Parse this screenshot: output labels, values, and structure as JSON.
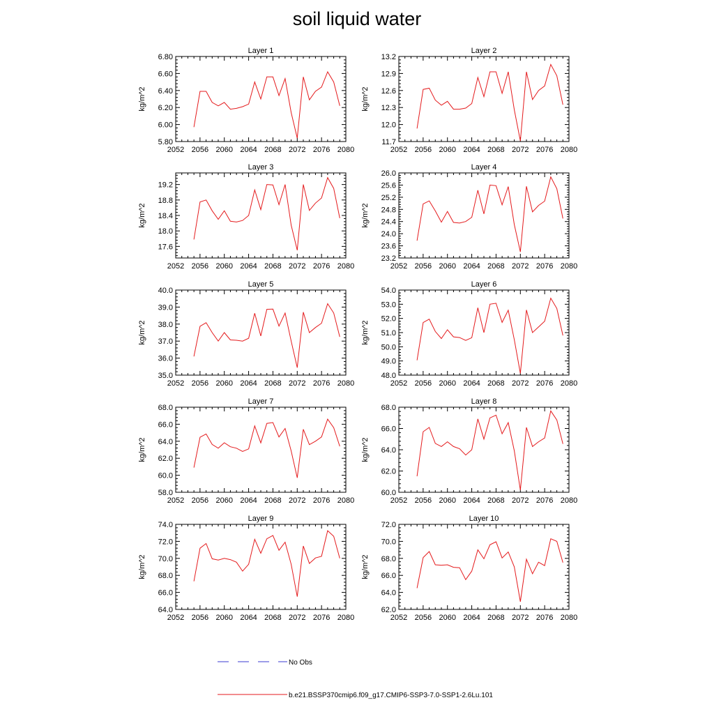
{
  "title": "soil liquid water",
  "legend": {
    "placement": "bottom-center",
    "entries": [
      {
        "label": "No Obs",
        "color": "#3a3ad0",
        "style": "dashed"
      },
      {
        "label": "b.e21.BSSP370cmip6.f09_g17.CMIP6-SSP3-7.0-SSP1-2.6Lu.101",
        "color": "#e41a1c",
        "style": "solid"
      }
    ]
  },
  "colors": {
    "series": "#e41a1c",
    "axis": "#000000"
  },
  "chart_data": [
    {
      "type": "line",
      "title": "Layer 1",
      "ylabel": "kg/m^2",
      "xlim": [
        2052,
        2080
      ],
      "xticks": [
        "2052",
        "2056",
        "2060",
        "2064",
        "2068",
        "2072",
        "2076",
        "2080"
      ],
      "ylim": [
        5.8,
        6.8
      ],
      "yticks": [
        "5.80",
        "6.00",
        "6.20",
        "6.40",
        "6.60",
        "6.80"
      ],
      "x": [
        2055,
        2056,
        2057,
        2058,
        2059,
        2060,
        2061,
        2062,
        2063,
        2064,
        2065,
        2066,
        2067,
        2068,
        2069,
        2070,
        2071,
        2072,
        2073,
        2074,
        2075,
        2076,
        2077,
        2078,
        2079
      ],
      "series": [
        {
          "values": [
            5.97,
            6.39,
            6.39,
            6.26,
            6.22,
            6.26,
            6.18,
            6.19,
            6.21,
            6.24,
            6.5,
            6.3,
            6.56,
            6.56,
            6.34,
            6.54,
            6.14,
            5.84,
            6.56,
            6.29,
            6.39,
            6.44,
            6.62,
            6.5,
            6.22
          ]
        }
      ]
    },
    {
      "type": "line",
      "title": "Layer 2",
      "ylabel": "kg/m^2",
      "xlim": [
        2052,
        2080
      ],
      "xticks": [
        "2052",
        "2056",
        "2060",
        "2064",
        "2068",
        "2072",
        "2076",
        "2080"
      ],
      "ylim": [
        11.7,
        13.2
      ],
      "yticks": [
        "11.7",
        "12.0",
        "12.3",
        "12.6",
        "12.9",
        "13.2"
      ],
      "x": [
        2055,
        2056,
        2057,
        2058,
        2059,
        2060,
        2061,
        2062,
        2063,
        2064,
        2065,
        2066,
        2067,
        2068,
        2069,
        2070,
        2071,
        2072,
        2073,
        2074,
        2075,
        2076,
        2077,
        2078,
        2079
      ],
      "series": [
        {
          "values": [
            11.93,
            12.62,
            12.64,
            12.43,
            12.34,
            12.41,
            12.27,
            12.27,
            12.29,
            12.37,
            12.83,
            12.49,
            12.93,
            12.93,
            12.55,
            12.93,
            12.26,
            11.71,
            12.93,
            12.44,
            12.6,
            12.68,
            13.06,
            12.86,
            12.35
          ]
        }
      ]
    },
    {
      "type": "line",
      "title": "Layer 3",
      "ylabel": "kg/m^2",
      "xlim": [
        2052,
        2080
      ],
      "xticks": [
        "2052",
        "2056",
        "2060",
        "2064",
        "2068",
        "2072",
        "2076",
        "2080"
      ],
      "ylim": [
        17.3,
        19.5
      ],
      "yticks": [
        "17.6",
        "18.0",
        "18.4",
        "18.8",
        "19.2"
      ],
      "x": [
        2055,
        2056,
        2057,
        2058,
        2059,
        2060,
        2061,
        2062,
        2063,
        2064,
        2065,
        2066,
        2067,
        2068,
        2069,
        2070,
        2071,
        2072,
        2073,
        2074,
        2075,
        2076,
        2077,
        2078,
        2079
      ],
      "series": [
        {
          "values": [
            17.78,
            18.75,
            18.8,
            18.52,
            18.3,
            18.52,
            18.25,
            18.23,
            18.27,
            18.4,
            19.06,
            18.55,
            19.2,
            19.19,
            18.68,
            19.2,
            18.15,
            17.5,
            19.2,
            18.53,
            18.72,
            18.85,
            19.38,
            19.1,
            18.33
          ]
        }
      ]
    },
    {
      "type": "line",
      "title": "Layer 4",
      "ylabel": "kg/m^2",
      "xlim": [
        2052,
        2080
      ],
      "xticks": [
        "2052",
        "2056",
        "2060",
        "2064",
        "2068",
        "2072",
        "2076",
        "2080"
      ],
      "ylim": [
        23.2,
        26.0
      ],
      "yticks": [
        "23.2",
        "23.6",
        "24.0",
        "24.4",
        "24.8",
        "25.2",
        "25.6",
        "26.0"
      ],
      "x": [
        2055,
        2056,
        2057,
        2058,
        2059,
        2060,
        2061,
        2062,
        2063,
        2064,
        2065,
        2066,
        2067,
        2068,
        2069,
        2070,
        2071,
        2072,
        2073,
        2074,
        2075,
        2076,
        2077,
        2078,
        2079
      ],
      "series": [
        {
          "values": [
            23.77,
            24.98,
            25.08,
            24.75,
            24.38,
            24.73,
            24.37,
            24.35,
            24.4,
            24.54,
            25.43,
            24.65,
            25.6,
            25.58,
            24.95,
            25.55,
            24.3,
            23.4,
            25.56,
            24.72,
            24.93,
            25.07,
            25.87,
            25.48,
            24.5
          ]
        }
      ]
    },
    {
      "type": "line",
      "title": "Layer 5",
      "ylabel": "kg/m^2",
      "xlim": [
        2052,
        2080
      ],
      "xticks": [
        "2052",
        "2056",
        "2060",
        "2064",
        "2068",
        "2072",
        "2076",
        "2080"
      ],
      "ylim": [
        35.0,
        40.0
      ],
      "yticks": [
        "35.0",
        "36.0",
        "37.0",
        "38.0",
        "39.0",
        "40.0"
      ],
      "x": [
        2055,
        2056,
        2057,
        2058,
        2059,
        2060,
        2061,
        2062,
        2063,
        2064,
        2065,
        2066,
        2067,
        2068,
        2069,
        2070,
        2071,
        2072,
        2073,
        2074,
        2075,
        2076,
        2077,
        2078,
        2079
      ],
      "series": [
        {
          "values": [
            36.1,
            37.87,
            38.08,
            37.5,
            37.0,
            37.5,
            37.07,
            37.05,
            37.0,
            37.17,
            38.64,
            37.3,
            38.87,
            38.88,
            37.88,
            38.65,
            37.0,
            35.44,
            38.7,
            37.5,
            37.8,
            38.05,
            39.2,
            38.65,
            37.25
          ]
        }
      ]
    },
    {
      "type": "line",
      "title": "Layer 6",
      "ylabel": "kg/m^2",
      "xlim": [
        2052,
        2080
      ],
      "xticks": [
        "2052",
        "2056",
        "2060",
        "2064",
        "2068",
        "2072",
        "2076",
        "2080"
      ],
      "ylim": [
        48.0,
        54.0
      ],
      "yticks": [
        "48.0",
        "49.0",
        "50.0",
        "51.0",
        "52.0",
        "53.0",
        "54.0"
      ],
      "x": [
        2055,
        2056,
        2057,
        2058,
        2059,
        2060,
        2061,
        2062,
        2063,
        2064,
        2065,
        2066,
        2067,
        2068,
        2069,
        2070,
        2071,
        2072,
        2073,
        2074,
        2075,
        2076,
        2077,
        2078,
        2079
      ],
      "series": [
        {
          "values": [
            49.05,
            51.71,
            51.95,
            51.08,
            50.58,
            51.2,
            50.7,
            50.65,
            50.45,
            50.64,
            52.75,
            51.0,
            53.0,
            53.07,
            51.72,
            52.58,
            50.5,
            48.12,
            52.6,
            51.0,
            51.4,
            51.8,
            53.43,
            52.7,
            50.8
          ]
        }
      ]
    },
    {
      "type": "line",
      "title": "Layer 7",
      "ylabel": "kg/m^2",
      "xlim": [
        2052,
        2080
      ],
      "xticks": [
        "2052",
        "2056",
        "2060",
        "2064",
        "2068",
        "2072",
        "2076",
        "2080"
      ],
      "ylim": [
        58.0,
        68.0
      ],
      "yticks": [
        "58.0",
        "60.0",
        "62.0",
        "64.0",
        "66.0",
        "68.0"
      ],
      "x": [
        2055,
        2056,
        2057,
        2058,
        2059,
        2060,
        2061,
        2062,
        2063,
        2064,
        2065,
        2066,
        2067,
        2068,
        2069,
        2070,
        2071,
        2072,
        2073,
        2074,
        2075,
        2076,
        2077,
        2078,
        2079
      ],
      "series": [
        {
          "values": [
            60.9,
            64.47,
            64.85,
            63.62,
            63.18,
            63.82,
            63.35,
            63.18,
            62.8,
            63.1,
            65.8,
            63.8,
            66.1,
            66.2,
            64.5,
            65.5,
            62.85,
            59.7,
            65.4,
            63.6,
            64.0,
            64.5,
            66.6,
            65.6,
            63.4
          ]
        }
      ]
    },
    {
      "type": "line",
      "title": "Layer 8",
      "ylabel": "kg/m^2",
      "xlim": [
        2052,
        2080
      ],
      "xticks": [
        "2052",
        "2056",
        "2060",
        "2064",
        "2068",
        "2072",
        "2076",
        "2080"
      ],
      "ylim": [
        60.0,
        68.0
      ],
      "yticks": [
        "60.0",
        "62.0",
        "64.0",
        "66.0",
        "68.0"
      ],
      "x": [
        2055,
        2056,
        2057,
        2058,
        2059,
        2060,
        2061,
        2062,
        2063,
        2064,
        2065,
        2066,
        2067,
        2068,
        2069,
        2070,
        2071,
        2072,
        2073,
        2074,
        2075,
        2076,
        2077,
        2078,
        2079
      ],
      "series": [
        {
          "values": [
            61.5,
            65.7,
            66.1,
            64.6,
            64.3,
            64.75,
            64.3,
            64.1,
            63.5,
            64.0,
            66.9,
            65.0,
            67.0,
            67.25,
            65.5,
            66.55,
            63.9,
            60.2,
            66.1,
            64.3,
            64.75,
            65.1,
            67.65,
            66.8,
            64.55
          ]
        }
      ]
    },
    {
      "type": "line",
      "title": "Layer 9",
      "ylabel": "kg/m^2",
      "xlim": [
        2052,
        2080
      ],
      "xticks": [
        "2052",
        "2056",
        "2060",
        "2064",
        "2068",
        "2072",
        "2076",
        "2080"
      ],
      "ylim": [
        64.0,
        74.0
      ],
      "yticks": [
        "64.0",
        "66.0",
        "68.0",
        "70.0",
        "72.0",
        "74.0"
      ],
      "x": [
        2055,
        2056,
        2057,
        2058,
        2059,
        2060,
        2061,
        2062,
        2063,
        2064,
        2065,
        2066,
        2067,
        2068,
        2069,
        2070,
        2071,
        2072,
        2073,
        2074,
        2075,
        2076,
        2077,
        2078,
        2079
      ],
      "series": [
        {
          "values": [
            67.3,
            71.2,
            71.75,
            69.95,
            69.8,
            70.0,
            69.85,
            69.55,
            68.5,
            69.3,
            72.25,
            70.6,
            72.3,
            72.7,
            70.95,
            71.9,
            69.3,
            65.5,
            71.45,
            69.4,
            70.05,
            70.25,
            73.25,
            72.6,
            70.0
          ]
        }
      ]
    },
    {
      "type": "line",
      "title": "Layer 10",
      "ylabel": "kg/m^2",
      "xlim": [
        2052,
        2080
      ],
      "xticks": [
        "2052",
        "2056",
        "2060",
        "2064",
        "2068",
        "2072",
        "2076",
        "2080"
      ],
      "ylim": [
        62.0,
        72.0
      ],
      "yticks": [
        "62.0",
        "64.0",
        "66.0",
        "68.0",
        "70.0",
        "72.0"
      ],
      "x": [
        2055,
        2056,
        2057,
        2058,
        2059,
        2060,
        2061,
        2062,
        2063,
        2064,
        2065,
        2066,
        2067,
        2068,
        2069,
        2070,
        2071,
        2072,
        2073,
        2074,
        2075,
        2076,
        2077,
        2078,
        2079
      ],
      "series": [
        {
          "values": [
            64.5,
            68.1,
            68.8,
            67.25,
            67.2,
            67.25,
            66.95,
            66.9,
            65.5,
            66.5,
            69.0,
            67.95,
            69.6,
            69.95,
            68.05,
            68.75,
            67.0,
            62.9,
            67.9,
            66.2,
            67.55,
            67.15,
            70.3,
            70.0,
            67.5
          ]
        }
      ]
    }
  ]
}
